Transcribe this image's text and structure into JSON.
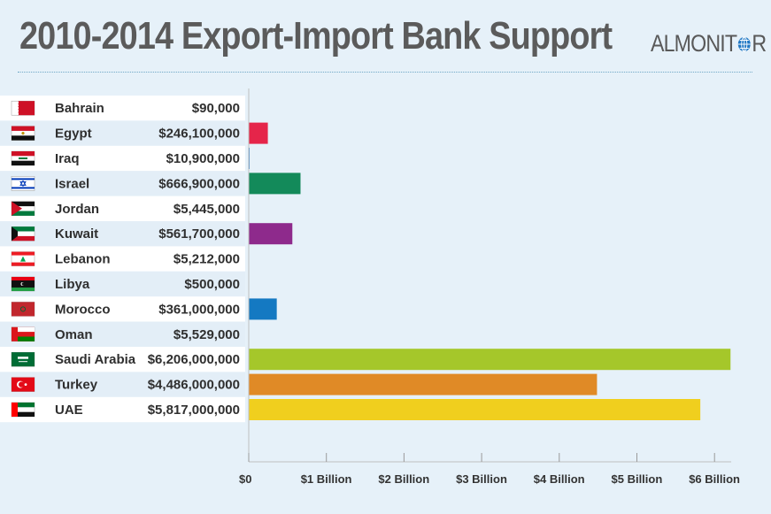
{
  "header": {
    "title": "2010-2014 Export-Import Bank Support",
    "brand_pre": "AL",
    "brand_post": "MONIT",
    "brand_end": "R"
  },
  "chart_data": {
    "type": "bar",
    "orientation": "horizontal",
    "title": "2010-2014 Export-Import Bank Support",
    "categories": [
      "Bahrain",
      "Egypt",
      "Iraq",
      "Israel",
      "Jordan",
      "Kuwait",
      "Lebanon",
      "Libya",
      "Morocco",
      "Oman",
      "Saudi Arabia",
      "Turkey",
      "UAE"
    ],
    "value_labels": [
      "$90,000",
      "$246,100,000",
      "$10,900,000",
      "$666,900,000",
      "$5,445,000",
      "$561,700,000",
      "$5,212,000",
      "$500,000",
      "$361,000,000",
      "$5,529,000",
      "$6,206,000,000",
      "$4,486,000,000",
      "$5,817,000,000"
    ],
    "values": [
      90000,
      246100000,
      10900000,
      666900000,
      5445000,
      561700000,
      5212000,
      500000,
      361000000,
      5529000,
      6206000000,
      4486000000,
      5817000000
    ],
    "colors": [
      "#e0e0e0",
      "#e5254a",
      "#1f78c8",
      "#138a5a",
      "#cccccc",
      "#8e2a8c",
      "#e58a9a",
      "#cccccc",
      "#1479c2",
      "#d08aa8",
      "#a5c72a",
      "#e08a26",
      "#f0cf1e"
    ],
    "flags": [
      "bahrain-flag",
      "egypt-flag",
      "iraq-flag",
      "israel-flag",
      "jordan-flag",
      "kuwait-flag",
      "lebanon-flag",
      "libya-flag",
      "morocco-flag",
      "oman-flag",
      "saudi-arabia-flag",
      "turkey-flag",
      "uae-flag"
    ],
    "xlim": [
      0,
      6500000000
    ],
    "x_ticks": [
      0,
      1000000000,
      2000000000,
      3000000000,
      4000000000,
      5000000000,
      6000000000
    ],
    "x_tick_labels": [
      "$0",
      "$1 Billion",
      "$2 Billion",
      "$3 Billion",
      "$4 Billion",
      "$5 Billion",
      "$6 Billion"
    ],
    "xlabel": "",
    "ylabel": "",
    "grid": false,
    "legend": "none"
  }
}
